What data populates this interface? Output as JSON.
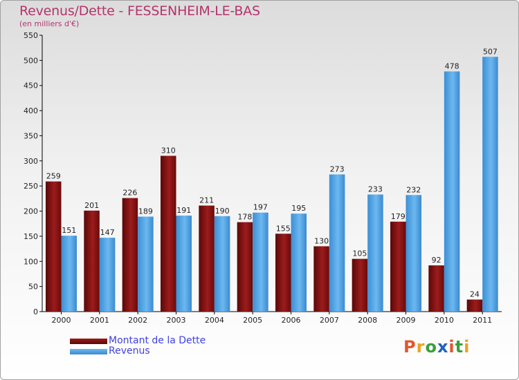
{
  "chart_data": {
    "type": "bar",
    "title": "Revenus/Dette - FESSENHEIM-LE-BAS",
    "subtitle": "(en milliers d'€)",
    "categories": [
      "2000",
      "2001",
      "2002",
      "2003",
      "2004",
      "2005",
      "2006",
      "2007",
      "2008",
      "2009",
      "2010",
      "2011"
    ],
    "series": [
      {
        "name": "Montant de la Dette",
        "values": [
          259,
          201,
          226,
          310,
          211,
          178,
          155,
          130,
          105,
          179,
          92,
          24
        ],
        "color": "#7a0e0e"
      },
      {
        "name": "Revenus",
        "values": [
          151,
          147,
          189,
          191,
          190,
          197,
          195,
          273,
          233,
          232,
          478,
          507
        ],
        "color": "#4a9fe0"
      }
    ],
    "ylim": [
      0,
      550
    ],
    "yticks": [
      0,
      50,
      100,
      150,
      200,
      250,
      300,
      350,
      400,
      450,
      500,
      550
    ],
    "grid": false,
    "legend": "bottom-left",
    "data_labels": true
  },
  "logo": {
    "text": "Proxiti",
    "colors": [
      "#e0582e",
      "#f0a020",
      "#3aa03a",
      "#2060c0",
      "#e0582e",
      "#3aa03a",
      "#f0a020"
    ]
  }
}
